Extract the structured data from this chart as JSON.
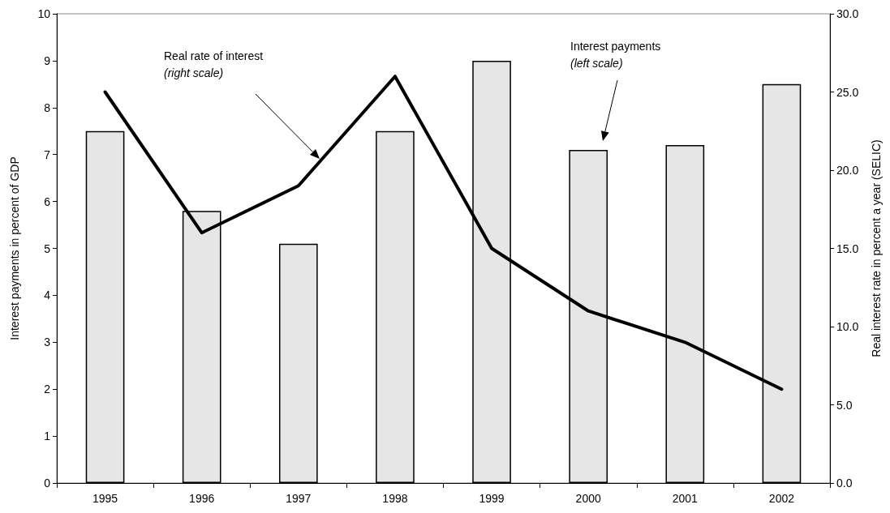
{
  "chart_data": {
    "type": "bar",
    "categories": [
      "1995",
      "1996",
      "1997",
      "1998",
      "1999",
      "2000",
      "2001",
      "2002"
    ],
    "ylabel": "Interest payments in percent of GDP",
    "y2label": "Real interest rate in percent a year (SELIC)",
    "ylim": [
      0,
      10
    ],
    "yticks": [
      0,
      1,
      2,
      3,
      4,
      5,
      6,
      7,
      8,
      9,
      10
    ],
    "y2lim": [
      0,
      30
    ],
    "y2ticks": [
      {
        "value": 0,
        "label": "0.0"
      },
      {
        "value": 5,
        "label": "5.0"
      },
      {
        "value": 10,
        "label": "10.0"
      },
      {
        "value": 15,
        "label": "15.0"
      },
      {
        "value": 20,
        "label": "20.0"
      },
      {
        "value": 25,
        "label": "25.0"
      },
      {
        "value": 30,
        "label": "30.0"
      }
    ],
    "series": [
      {
        "color": "#e6e6e6",
        "values": [
          7.5,
          5.8,
          5.1,
          7.5,
          9.0,
          7.1,
          7.2,
          8.5
        ]
      },
      {
        "type": "line",
        "axis": "y2",
        "color": "#000000",
        "values": [
          25.0,
          16.0,
          19.0,
          26.0,
          15.0,
          11.0,
          9.0,
          6.0
        ]
      }
    ],
    "annotations": [
      "Real rate of interest (right scale)",
      "Interest payments (left scale)"
    ],
    "grid": false,
    "marker": "none",
    "line_style": "solid"
  }
}
